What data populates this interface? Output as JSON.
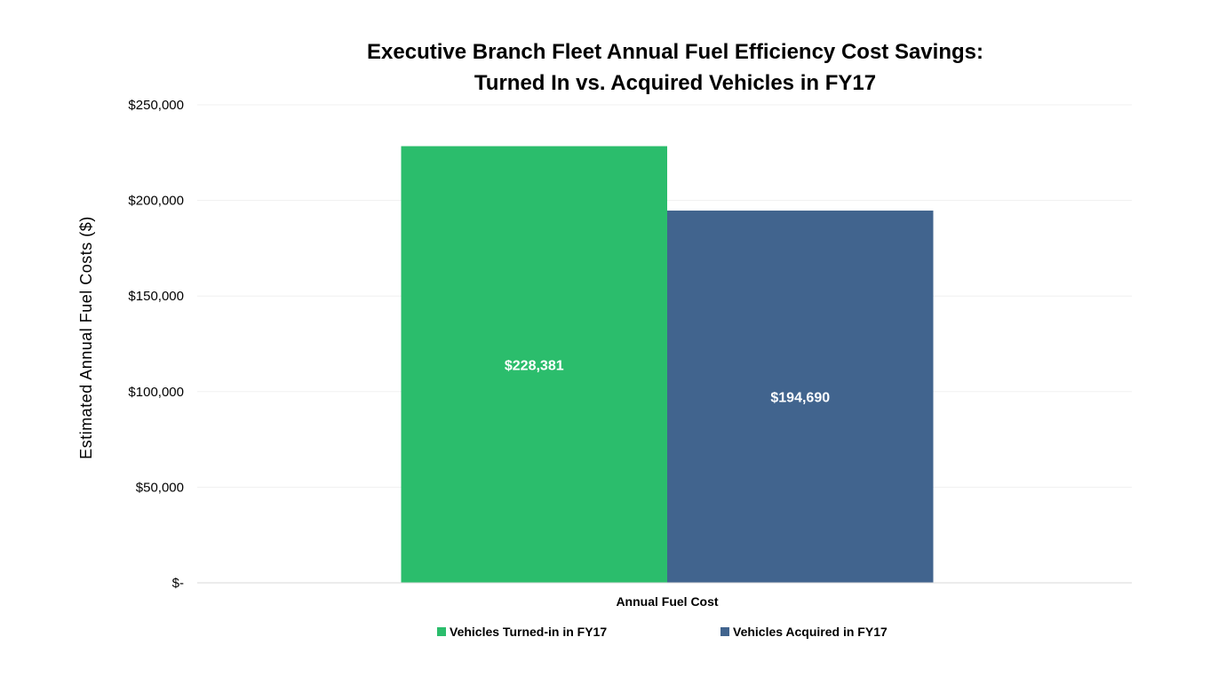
{
  "chart_data": {
    "type": "bar",
    "title": [
      "Executive Branch Fleet Annual Fuel Efficiency Cost Savings:",
      "Turned In vs. Acquired Vehicles in FY17"
    ],
    "ylabel": "Estimated Annual Fuel Costs ($)",
    "xlabel": "",
    "categories": [
      "Annual Fuel Cost"
    ],
    "ylim": [
      0,
      250000
    ],
    "yticks": [
      {
        "value": 0,
        "label": "$-"
      },
      {
        "value": 50000,
        "label": "$50,000"
      },
      {
        "value": 100000,
        "label": "$100,000"
      },
      {
        "value": 150000,
        "label": "$150,000"
      },
      {
        "value": 200000,
        "label": "$200,000"
      },
      {
        "value": 250000,
        "label": "$250,000"
      }
    ],
    "grid": true,
    "legend_position": "bottom",
    "series": [
      {
        "name": "Vehicles Turned-in in FY17",
        "values": [
          228381
        ],
        "data_labels": [
          "$228,381"
        ],
        "color": "#2BBD6C"
      },
      {
        "name": "Vehicles Acquired in FY17",
        "values": [
          194690
        ],
        "data_labels": [
          "$194,690"
        ],
        "color": "#41648E"
      }
    ]
  }
}
